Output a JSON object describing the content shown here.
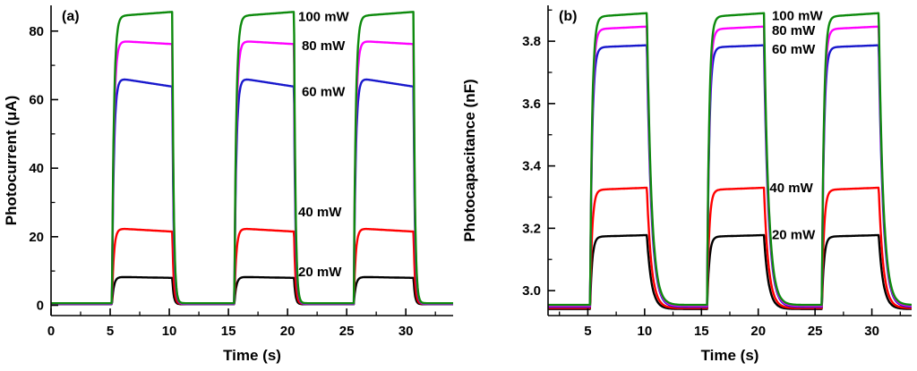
{
  "figure": {
    "background": "#ffffff"
  },
  "chart_data": [
    {
      "type": "line",
      "panel_label": "(a)",
      "xlabel": "Time (s)",
      "ylabel": "Photocurrent (μA)",
      "xlim": [
        0,
        34
      ],
      "ylim": [
        -3,
        87.5
      ],
      "xticks": [
        0,
        5,
        10,
        15,
        20,
        25,
        30
      ],
      "xtick_labels": [
        "0",
        "5",
        "10",
        "15",
        "20",
        "25",
        "30"
      ],
      "yticks": [
        0,
        20,
        40,
        60,
        80
      ],
      "ytick_labels": [
        "0",
        "20",
        "40",
        "60",
        "80"
      ],
      "xminor": [
        2.5,
        7.5,
        12.5,
        17.5,
        22.5,
        27.5,
        32.5
      ],
      "yminor": [
        10,
        30,
        50,
        70
      ],
      "pulse_windows": [
        [
          5.15,
          10.25
        ],
        [
          15.5,
          20.55
        ],
        [
          25.6,
          30.65
        ]
      ],
      "tau": {
        "rise": 0.16,
        "fall": 0.12
      },
      "series": [
        {
          "name": "20 mW",
          "color": "#000000",
          "baseline": 0.3,
          "start": 8.3,
          "end": 8.0
        },
        {
          "name": "40 mW",
          "color": "#ff0000",
          "baseline": 0.4,
          "start": 22.5,
          "end": 21.5
        },
        {
          "name": "60 mW",
          "color": "#1818cc",
          "baseline": 0.4,
          "start": 66.5,
          "end": 63.8
        },
        {
          "name": "80 mW",
          "color": "#ff00ff",
          "baseline": 0.5,
          "start": 77.2,
          "end": 76.2
        },
        {
          "name": "100 mW",
          "color": "#0d8a0d",
          "baseline": 0.6,
          "start": 84.3,
          "end": 85.6
        }
      ],
      "annotations": [
        {
          "text": "100 mW",
          "x": 20.9,
          "y": 83.0
        },
        {
          "text": "80 mW",
          "x": 21.2,
          "y": 74.5
        },
        {
          "text": "60 mW",
          "x": 21.2,
          "y": 61.0
        },
        {
          "text": "40 mW",
          "x": 20.9,
          "y": 26.0
        },
        {
          "text": "20 mW",
          "x": 20.9,
          "y": 8.5
        }
      ]
    },
    {
      "type": "line",
      "panel_label": "(b)",
      "xlabel": "Time (s)",
      "ylabel": "Photocapacitance (nF)",
      "xlim": [
        1.5,
        33.5
      ],
      "ylim": [
        2.92,
        3.915
      ],
      "xticks": [
        5,
        10,
        15,
        20,
        25,
        30
      ],
      "xtick_labels": [
        "5",
        "10",
        "15",
        "20",
        "25",
        "30"
      ],
      "yticks": [
        3.0,
        3.2,
        3.4,
        3.6,
        3.8
      ],
      "ytick_labels": [
        "3.0",
        "3.2",
        "3.4",
        "3.6",
        "3.8"
      ],
      "xminor": [
        2.5,
        7.5,
        12.5,
        17.5,
        22.5,
        27.5,
        32.5
      ],
      "yminor": [
        3.1,
        3.3,
        3.5,
        3.7,
        3.9
      ],
      "pulse_windows": [
        [
          5.2,
          10.2
        ],
        [
          15.5,
          20.5
        ],
        [
          25.6,
          30.6
        ]
      ],
      "tau": {
        "rise": 0.18,
        "fall": 0.4
      },
      "series": [
        {
          "name": "20 mW",
          "color": "#000000",
          "baseline": 2.941,
          "start": 3.173,
          "end": 3.178
        },
        {
          "name": "40 mW",
          "color": "#ff0000",
          "baseline": 2.944,
          "start": 3.323,
          "end": 3.33
        },
        {
          "name": "60 mW",
          "color": "#1818cc",
          "baseline": 2.948,
          "start": 3.78,
          "end": 3.787
        },
        {
          "name": "80 mW",
          "color": "#ff00ff",
          "baseline": 2.951,
          "start": 3.838,
          "end": 3.847
        },
        {
          "name": "100 mW",
          "color": "#0d8a0d",
          "baseline": 2.954,
          "start": 3.878,
          "end": 3.89
        }
      ],
      "annotations": [
        {
          "text": "100 mW",
          "x": 21.2,
          "y": 3.868
        },
        {
          "text": "80 mW",
          "x": 21.2,
          "y": 3.82
        },
        {
          "text": "60 mW",
          "x": 21.2,
          "y": 3.76
        },
        {
          "text": "40 mW",
          "x": 21.0,
          "y": 3.315
        },
        {
          "text": "20 mW",
          "x": 21.2,
          "y": 3.165
        }
      ]
    }
  ]
}
